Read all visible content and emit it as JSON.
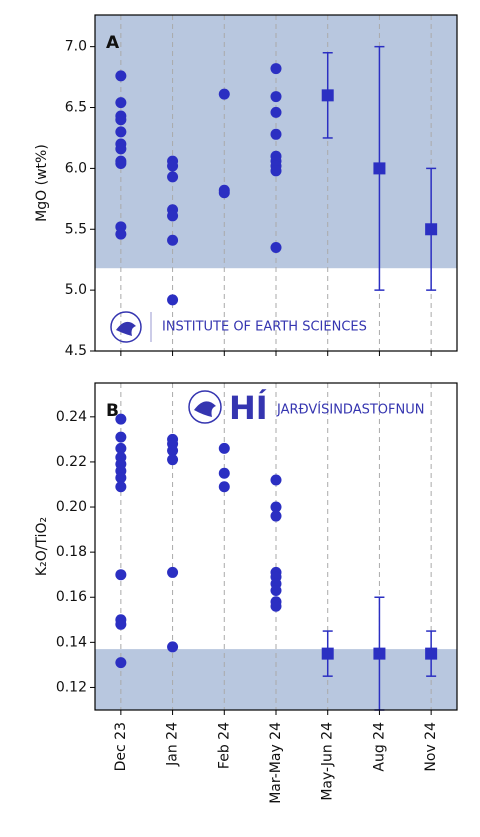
{
  "chart_data": [
    {
      "type": "scatter",
      "panel_label": "A",
      "y_label": "MgO (wt%)",
      "ylim": [
        4.5,
        7.26
      ],
      "yticks": [
        4.5,
        5.0,
        5.5,
        6.0,
        6.5,
        7.0
      ],
      "yticks_labels": [
        "4.5",
        "5.0",
        "5.5",
        "6.0",
        "6.5",
        "7.0"
      ],
      "shaded_range": [
        5.18,
        7.26
      ],
      "shade_color": "#b8c7df",
      "logo_text": "INSTITUTE OF EARTH SCIENCES",
      "series": [
        {
          "marker": "circle",
          "color": "#2b2fc2",
          "values": [
            [
              6.76,
              6.54,
              6.43,
              6.4,
              6.3,
              6.2,
              6.16,
              6.06,
              6.04,
              5.52,
              5.46
            ],
            [
              6.06,
              6.02,
              5.93,
              5.66,
              5.61,
              5.41,
              4.92
            ],
            [
              6.61,
              5.82,
              5.8
            ],
            [
              6.82,
              6.59,
              6.46,
              6.28,
              6.1,
              6.06,
              6.02,
              5.98,
              5.35
            ],
            null,
            null,
            null
          ]
        },
        {
          "marker": "square",
          "color": "#2b2fc2",
          "values": [
            null,
            null,
            null,
            null,
            6.6,
            6.0,
            5.5
          ],
          "errors": [
            null,
            null,
            null,
            null,
            0.35,
            1.0,
            0.5
          ]
        }
      ]
    },
    {
      "type": "scatter",
      "panel_label": "B",
      "y_label": "K₂O/TiO₂",
      "categories": [
        "Dec 23",
        "Jan 24",
        "Feb 24",
        "Mar-May 24",
        "May-Jun 24",
        "Aug 24",
        "Nov 24"
      ],
      "ylim": [
        0.11,
        0.255
      ],
      "yticks": [
        0.12,
        0.14,
        0.16,
        0.18,
        0.2,
        0.22,
        0.24
      ],
      "yticks_labels": [
        "0.12",
        "0.14",
        "0.16",
        "0.18",
        "0.20",
        "0.22",
        "0.24"
      ],
      "shaded_range": [
        0.11,
        0.137
      ],
      "shade_color": "#b8c7df",
      "logo_text": "HÍ",
      "logo_subtext": "JARÐVÍSINDASTOFNUN",
      "series": [
        {
          "marker": "circle",
          "color": "#2b2fc2",
          "values": [
            [
              0.239,
              0.231,
              0.226,
              0.222,
              0.219,
              0.216,
              0.213,
              0.209,
              0.17,
              0.15,
              0.148,
              0.131
            ],
            [
              0.23,
              0.228,
              0.225,
              0.221,
              0.171,
              0.138
            ],
            [
              0.226,
              0.215,
              0.209
            ],
            [
              0.212,
              0.2,
              0.196,
              0.171,
              0.169,
              0.166,
              0.163,
              0.158,
              0.156
            ],
            null,
            null,
            null
          ]
        },
        {
          "marker": "square",
          "color": "#2b2fc2",
          "values": [
            null,
            null,
            null,
            null,
            0.135,
            0.135,
            0.135
          ],
          "errors": [
            null,
            null,
            null,
            null,
            0.01,
            0.025,
            0.01
          ]
        }
      ]
    }
  ]
}
